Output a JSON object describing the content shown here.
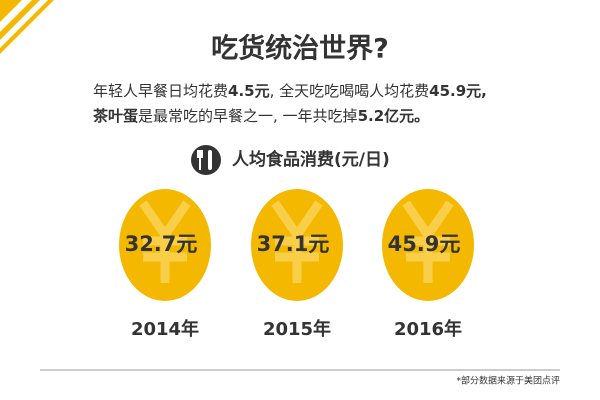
{
  "header": {
    "title": "吃货统治世界?",
    "lines": [
      [
        {
          "text": "年轻人早餐日均花费",
          "bold": false
        },
        {
          "text": "4.5元",
          "bold": true
        },
        {
          "text": ", 全天吃吃喝喝人均花费",
          "bold": false
        },
        {
          "text": "45.9元,",
          "bold": true
        }
      ],
      [
        {
          "text": "茶叶蛋",
          "bold": true
        },
        {
          "text": "是最常吃的早餐之一, 一年共吃掉",
          "bold": false
        },
        {
          "text": "5.2亿元。",
          "bold": true
        }
      ]
    ]
  },
  "section": {
    "title": "人均食品消费(元/日)",
    "items": [
      {
        "value": "32.7元",
        "year": "2014年"
      },
      {
        "value": "37.1元",
        "year": "2015年"
      },
      {
        "value": "45.9元",
        "year": "2016年"
      }
    ]
  },
  "footer": {
    "note": "*部分数据来源于美团点评"
  }
}
